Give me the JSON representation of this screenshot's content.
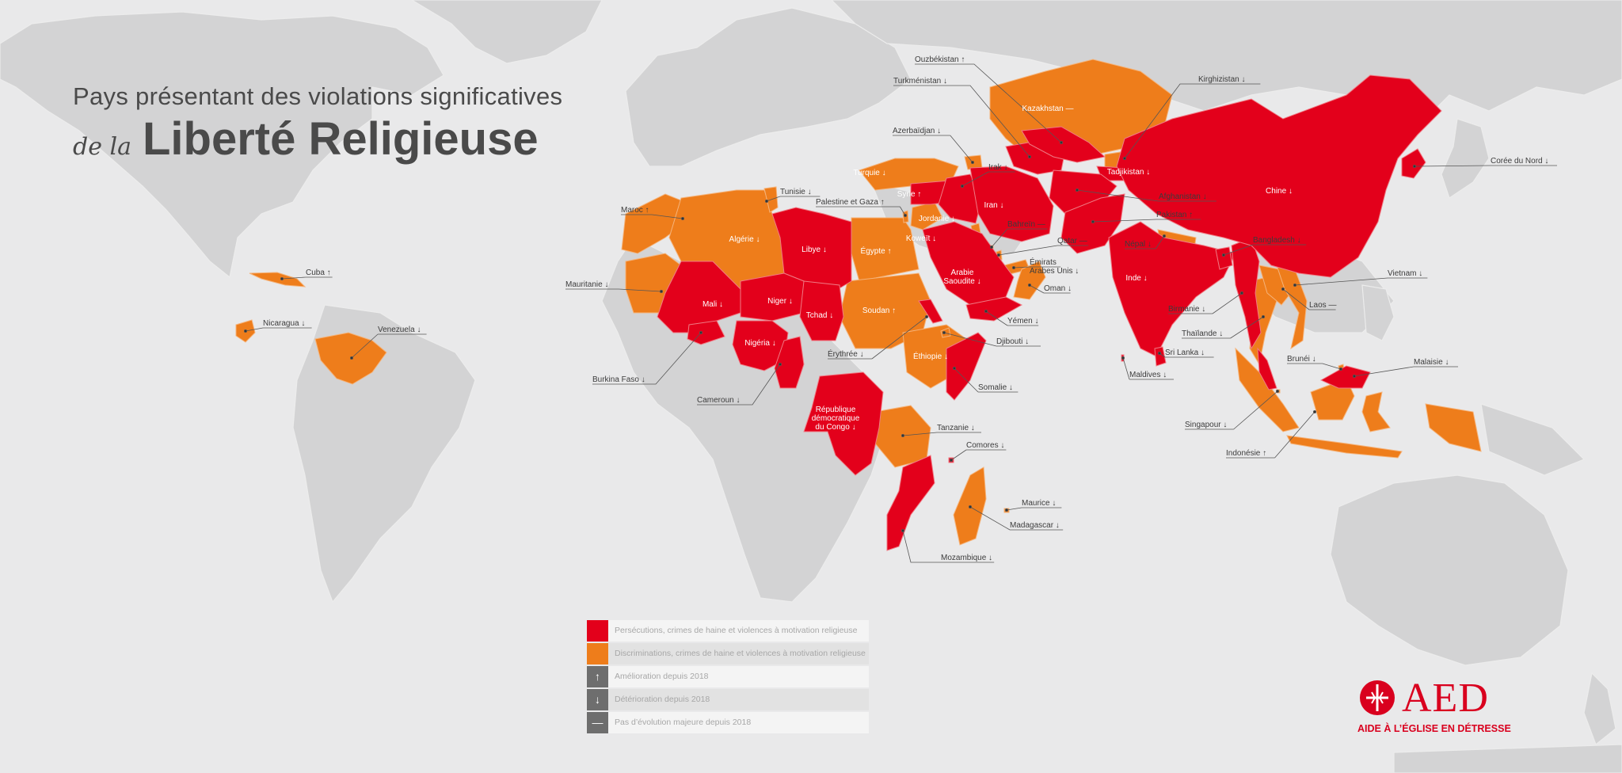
{
  "title": {
    "line1": "Pays présentant des violations significatives",
    "prefix": "de la",
    "main": "Liberté Religieuse"
  },
  "colors": {
    "persecution": "#e3001b",
    "discrimination": "#ee7d1b",
    "land": "#d3d3d4",
    "ocean": "#e9e9ea",
    "trend": "#6e6e6e"
  },
  "legend": [
    {
      "symbol": "",
      "kind": "persecution",
      "label": "Persécutions, crimes de haine et violences à motivation religieuse"
    },
    {
      "symbol": "",
      "kind": "discrimination",
      "label": "Discriminations, crimes de haine et violences à motivation religieuse"
    },
    {
      "symbol": "↑",
      "kind": "trend",
      "label": "Amélioration depuis 2018"
    },
    {
      "symbol": "↓",
      "kind": "trend",
      "label": "Détérioration depuis 2018"
    },
    {
      "symbol": "—",
      "kind": "trend",
      "label": "Pas d’évolution majeure depuis 2018"
    }
  ],
  "countries": [
    {
      "name": "Cuba",
      "trend": "↑",
      "status": "discrimination"
    },
    {
      "name": "Nicaragua",
      "trend": "↓",
      "status": "discrimination"
    },
    {
      "name": "Venezuela",
      "trend": "↓",
      "status": "discrimination"
    },
    {
      "name": "Maroc",
      "trend": "↑",
      "status": "discrimination"
    },
    {
      "name": "Tunisie",
      "trend": "↓",
      "status": "discrimination"
    },
    {
      "name": "Algérie",
      "trend": "↓",
      "status": "discrimination"
    },
    {
      "name": "Mauritanie",
      "trend": "↓",
      "status": "discrimination"
    },
    {
      "name": "Libye",
      "trend": "↓",
      "status": "persecution"
    },
    {
      "name": "Égypte",
      "trend": "↑",
      "status": "discrimination"
    },
    {
      "name": "Mali",
      "trend": "↓",
      "status": "persecution"
    },
    {
      "name": "Niger",
      "trend": "↓",
      "status": "persecution"
    },
    {
      "name": "Tchad",
      "trend": "↓",
      "status": "persecution"
    },
    {
      "name": "Nigéria",
      "trend": "↓",
      "status": "persecution"
    },
    {
      "name": "Burkina Faso",
      "trend": "↓",
      "status": "persecution"
    },
    {
      "name": "Cameroun",
      "trend": "↓",
      "status": "persecution"
    },
    {
      "name": "Soudan",
      "trend": "↑",
      "status": "discrimination"
    },
    {
      "name": "Érythrée",
      "trend": "↓",
      "status": "persecution"
    },
    {
      "name": "Éthiopie",
      "trend": "↓",
      "status": "discrimination"
    },
    {
      "name": "Djibouti",
      "trend": "↓",
      "status": "discrimination"
    },
    {
      "name": "Somalie",
      "trend": "↓",
      "status": "persecution"
    },
    {
      "name": "République démocratique du Congo",
      "trend": "↓",
      "status": "persecution"
    },
    {
      "name": "Tanzanie",
      "trend": "↓",
      "status": "discrimination"
    },
    {
      "name": "Comores",
      "trend": "↓",
      "status": "persecution"
    },
    {
      "name": "Mozambique",
      "trend": "↓",
      "status": "persecution"
    },
    {
      "name": "Madagascar",
      "trend": "↓",
      "status": "discrimination"
    },
    {
      "name": "Maurice",
      "trend": "↓",
      "status": "discrimination"
    },
    {
      "name": "Turquie",
      "trend": "↓",
      "status": "discrimination"
    },
    {
      "name": "Syrie",
      "trend": "↑",
      "status": "persecution"
    },
    {
      "name": "Palestine et Gaza",
      "trend": "↑",
      "status": "discrimination"
    },
    {
      "name": "Jordanie",
      "trend": "↓",
      "status": "discrimination"
    },
    {
      "name": "Irak",
      "trend": "↓",
      "status": "persecution"
    },
    {
      "name": "Iran",
      "trend": "↓",
      "status": "persecution"
    },
    {
      "name": "Koweït",
      "trend": "↓",
      "status": "discrimination"
    },
    {
      "name": "Bahreïn",
      "trend": "—",
      "status": "discrimination"
    },
    {
      "name": "Qatar",
      "trend": "—",
      "status": "discrimination"
    },
    {
      "name": "Émirats Arabes Unis",
      "trend": "↓",
      "status": "discrimination"
    },
    {
      "name": "Arabie Saoudite",
      "trend": "↓",
      "status": "persecution"
    },
    {
      "name": "Oman",
      "trend": "↓",
      "status": "discrimination"
    },
    {
      "name": "Yémen",
      "trend": "↓",
      "status": "persecution"
    },
    {
      "name": "Azerbaïdjan",
      "trend": "↓",
      "status": "discrimination"
    },
    {
      "name": "Turkménistan",
      "trend": "↓",
      "status": "persecution"
    },
    {
      "name": "Ouzbékistan",
      "trend": "↑",
      "status": "persecution"
    },
    {
      "name": "Kazakhstan",
      "trend": "—",
      "status": "discrimination"
    },
    {
      "name": "Kirghizistan",
      "trend": "↓",
      "status": "discrimination"
    },
    {
      "name": "Tadjikistan",
      "trend": "↓",
      "status": "persecution"
    },
    {
      "name": "Afghanistan",
      "trend": "↓",
      "status": "persecution"
    },
    {
      "name": "Pakistan",
      "trend": "↑",
      "status": "persecution"
    },
    {
      "name": "Népal",
      "trend": "↓",
      "status": "discrimination"
    },
    {
      "name": "Inde",
      "trend": "↓",
      "status": "persecution"
    },
    {
      "name": "Bangladesh",
      "trend": "↓",
      "status": "persecution"
    },
    {
      "name": "Sri Lanka",
      "trend": "↓",
      "status": "persecution"
    },
    {
      "name": "Maldives",
      "trend": "↓",
      "status": "persecution"
    },
    {
      "name": "Chine",
      "trend": "↓",
      "status": "persecution"
    },
    {
      "name": "Corée du Nord",
      "trend": "↓",
      "status": "persecution"
    },
    {
      "name": "Birmanie",
      "trend": "↓",
      "status": "persecution"
    },
    {
      "name": "Thaïlande",
      "trend": "↓",
      "status": "discrimination"
    },
    {
      "name": "Laos",
      "trend": "—",
      "status": "discrimination"
    },
    {
      "name": "Vietnam",
      "trend": "↓",
      "status": "discrimination"
    },
    {
      "name": "Brunéi",
      "trend": "↓",
      "status": "discrimination"
    },
    {
      "name": "Malaisie",
      "trend": "↓",
      "status": "persecution"
    },
    {
      "name": "Singapour",
      "trend": "↓",
      "status": "discrimination"
    },
    {
      "name": "Indonésie",
      "trend": "↑",
      "status": "discrimination"
    }
  ],
  "logo": {
    "name": "AED",
    "tagline": "AIDE À L’ÉGLISE EN DÉTRESSE"
  }
}
